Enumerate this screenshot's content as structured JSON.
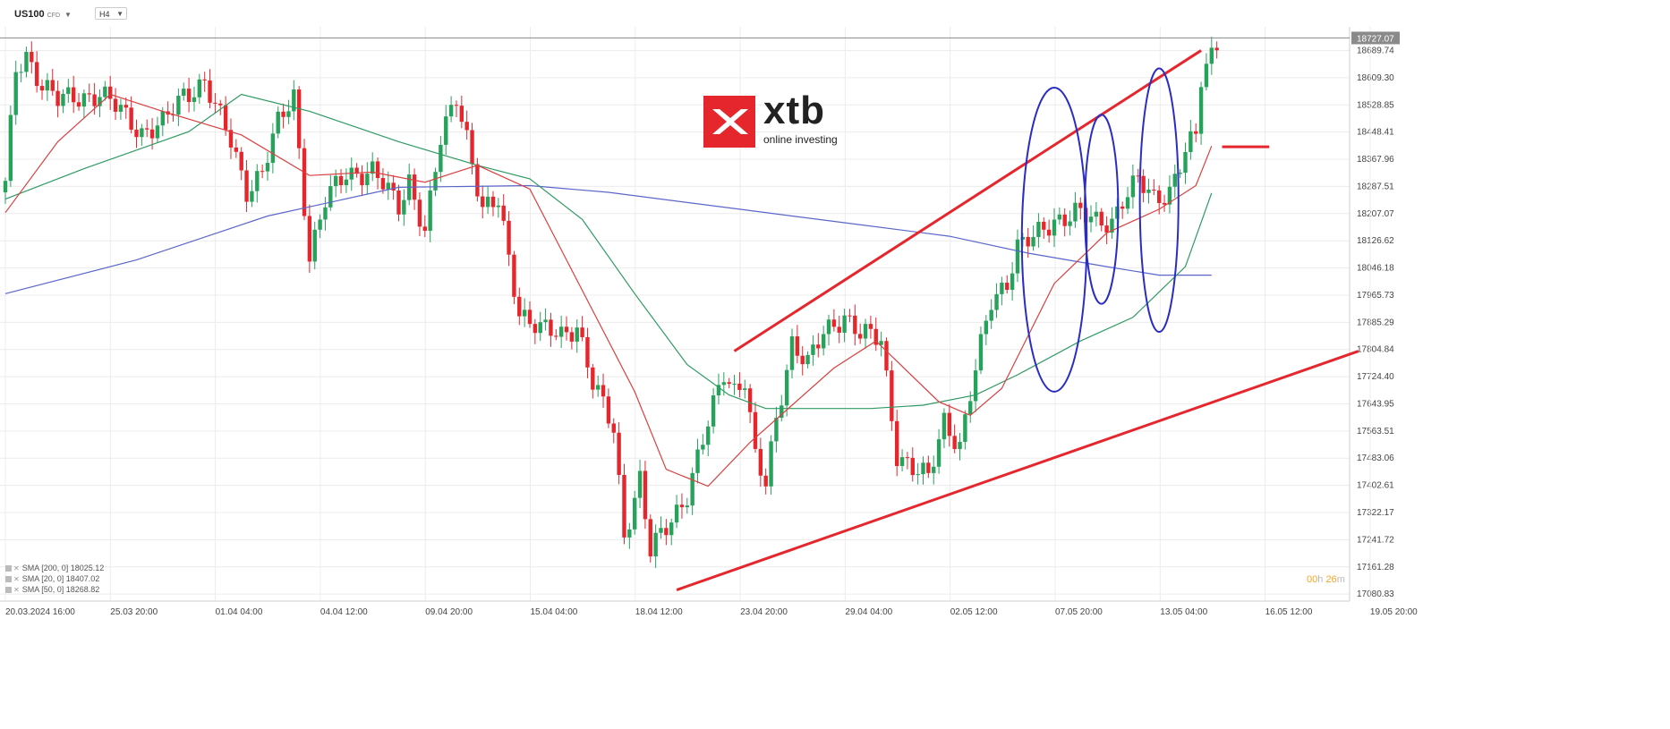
{
  "toolbar": {
    "symbol": "US100",
    "symbol_tag": "CFD",
    "timeframe": "H4"
  },
  "logo": {
    "name": "xtb",
    "tagline": "online investing"
  },
  "legend": [
    {
      "label": "SMA [200, 0]",
      "value": "18025.12"
    },
    {
      "label": "SMA [20, 0]",
      "value": "18407.02"
    },
    {
      "label": "SMA [50, 0]",
      "value": "18268.82"
    }
  ],
  "timer": {
    "hours": "00",
    "h": "h",
    "minutes": "26",
    "m": "m"
  },
  "colors": {
    "up": "#26a25b",
    "down": "#e5262d",
    "sma200": "#5a66c9",
    "sma20": "#d94040",
    "sma50": "#2e9a63",
    "trendline": "#e5262d",
    "circle": "#2a2dc4",
    "grid": "#ececec"
  },
  "chart_data": {
    "type": "candlestick",
    "timeframe": "H4",
    "ylim": [
      17060,
      18760
    ],
    "current_price": "18727.07",
    "y_ticks": [
      "18689.74",
      "18609.30",
      "18528.85",
      "18448.41",
      "18367.96",
      "18287.51",
      "18207.07",
      "18126.62",
      "18046.18",
      "17965.73",
      "17885.29",
      "17804.84",
      "17724.40",
      "17643.95",
      "17563.51",
      "17483.06",
      "17402.61",
      "17322.17",
      "17241.72",
      "17161.28",
      "17080.83"
    ],
    "x_labels": [
      "20.03.2024 16:00",
      "25.03 20:00",
      "01.04 04:00",
      "04.04 12:00",
      "09.04 20:00",
      "15.04 04:00",
      "18.04 12:00",
      "23.04 20:00",
      "29.04 04:00",
      "02.05 12:00",
      "07.05 20:00",
      "13.05 04:00",
      "16.05 12:00",
      "19.05 20:00"
    ],
    "anchors": [
      {
        "i": 0,
        "p": 18290
      },
      {
        "i": 2,
        "p": 18630
      },
      {
        "i": 4,
        "p": 18680
      },
      {
        "i": 7,
        "p": 18590
      },
      {
        "i": 10,
        "p": 18540
      },
      {
        "i": 14,
        "p": 18555
      },
      {
        "i": 18,
        "p": 18560
      },
      {
        "i": 22,
        "p": 18510
      },
      {
        "i": 26,
        "p": 18450
      },
      {
        "i": 30,
        "p": 18470
      },
      {
        "i": 34,
        "p": 18560
      },
      {
        "i": 38,
        "p": 18600
      },
      {
        "i": 40,
        "p": 18520
      },
      {
        "i": 43,
        "p": 18420
      },
      {
        "i": 46,
        "p": 18280
      },
      {
        "i": 49,
        "p": 18330
      },
      {
        "i": 52,
        "p": 18470
      },
      {
        "i": 55,
        "p": 18560
      },
      {
        "i": 58,
        "p": 18080
      },
      {
        "i": 61,
        "p": 18240
      },
      {
        "i": 65,
        "p": 18330
      },
      {
        "i": 70,
        "p": 18330
      },
      {
        "i": 75,
        "p": 18230
      },
      {
        "i": 77,
        "p": 18310
      },
      {
        "i": 80,
        "p": 18150
      },
      {
        "i": 83,
        "p": 18420
      },
      {
        "i": 86,
        "p": 18560
      },
      {
        "i": 88,
        "p": 18440
      },
      {
        "i": 91,
        "p": 18210
      },
      {
        "i": 94,
        "p": 18240
      },
      {
        "i": 98,
        "p": 17920
      },
      {
        "i": 102,
        "p": 17860
      },
      {
        "i": 106,
        "p": 17850
      },
      {
        "i": 109,
        "p": 17880
      },
      {
        "i": 112,
        "p": 17700
      },
      {
        "i": 116,
        "p": 17570
      },
      {
        "i": 118,
        "p": 17260
      },
      {
        "i": 121,
        "p": 17420
      },
      {
        "i": 123,
        "p": 17200
      },
      {
        "i": 126,
        "p": 17280
      },
      {
        "i": 130,
        "p": 17380
      },
      {
        "i": 134,
        "p": 17580
      },
      {
        "i": 137,
        "p": 17740
      },
      {
        "i": 139,
        "p": 17690
      },
      {
        "i": 141,
        "p": 17720
      },
      {
        "i": 143,
        "p": 17480
      },
      {
        "i": 145,
        "p": 17400
      },
      {
        "i": 147,
        "p": 17600
      },
      {
        "i": 150,
        "p": 17830
      },
      {
        "i": 153,
        "p": 17760
      },
      {
        "i": 156,
        "p": 17850
      },
      {
        "i": 160,
        "p": 17910
      },
      {
        "i": 163,
        "p": 17850
      },
      {
        "i": 167,
        "p": 17830
      },
      {
        "i": 170,
        "p": 17500
      },
      {
        "i": 173,
        "p": 17450
      },
      {
        "i": 176,
        "p": 17420
      },
      {
        "i": 179,
        "p": 17600
      },
      {
        "i": 182,
        "p": 17520
      },
      {
        "i": 185,
        "p": 17740
      },
      {
        "i": 188,
        "p": 17950
      },
      {
        "i": 191,
        "p": 18010
      },
      {
        "i": 193,
        "p": 18110
      },
      {
        "i": 196,
        "p": 18130
      },
      {
        "i": 200,
        "p": 18190
      },
      {
        "i": 204,
        "p": 18210
      },
      {
        "i": 208,
        "p": 18180
      },
      {
        "i": 211,
        "p": 18190
      },
      {
        "i": 213,
        "p": 18250
      },
      {
        "i": 216,
        "p": 18300
      },
      {
        "i": 219,
        "p": 18250
      },
      {
        "i": 222,
        "p": 18280
      },
      {
        "i": 225,
        "p": 18390
      },
      {
        "i": 227,
        "p": 18430
      },
      {
        "i": 228,
        "p": 18600
      },
      {
        "i": 231,
        "p": 18720
      }
    ],
    "sma200": [
      [
        0,
        17970
      ],
      [
        25,
        18070
      ],
      [
        50,
        18200
      ],
      [
        75,
        18285
      ],
      [
        100,
        18290
      ],
      [
        115,
        18270
      ],
      [
        140,
        18220
      ],
      [
        160,
        18180
      ],
      [
        180,
        18140
      ],
      [
        195,
        18090
      ],
      [
        210,
        18050
      ],
      [
        220,
        18025
      ],
      [
        230,
        18025
      ]
    ],
    "sma20": [
      [
        0,
        18210
      ],
      [
        10,
        18420
      ],
      [
        20,
        18560
      ],
      [
        30,
        18510
      ],
      [
        45,
        18440
      ],
      [
        58,
        18320
      ],
      [
        70,
        18330
      ],
      [
        80,
        18300
      ],
      [
        90,
        18350
      ],
      [
        100,
        18280
      ],
      [
        110,
        17980
      ],
      [
        120,
        17680
      ],
      [
        126,
        17450
      ],
      [
        134,
        17400
      ],
      [
        142,
        17530
      ],
      [
        150,
        17640
      ],
      [
        158,
        17750
      ],
      [
        166,
        17830
      ],
      [
        172,
        17740
      ],
      [
        178,
        17650
      ],
      [
        184,
        17610
      ],
      [
        190,
        17690
      ],
      [
        200,
        18000
      ],
      [
        210,
        18150
      ],
      [
        220,
        18220
      ],
      [
        227,
        18290
      ],
      [
        230,
        18407
      ]
    ],
    "sma50": [
      [
        0,
        18250
      ],
      [
        15,
        18340
      ],
      [
        35,
        18450
      ],
      [
        45,
        18560
      ],
      [
        58,
        18510
      ],
      [
        75,
        18420
      ],
      [
        90,
        18350
      ],
      [
        100,
        18310
      ],
      [
        110,
        18190
      ],
      [
        120,
        17970
      ],
      [
        130,
        17760
      ],
      [
        138,
        17670
      ],
      [
        145,
        17630
      ],
      [
        155,
        17630
      ],
      [
        165,
        17630
      ],
      [
        175,
        17640
      ],
      [
        185,
        17670
      ],
      [
        193,
        17730
      ],
      [
        205,
        17830
      ],
      [
        215,
        17900
      ],
      [
        225,
        18050
      ],
      [
        230,
        18268
      ]
    ],
    "trendlines": [
      [
        [
          128,
          17093
        ],
        [
          258,
          17800
        ]
      ],
      [
        [
          139,
          17800
        ],
        [
          228,
          18690
        ]
      ]
    ],
    "marker": [
      [
        232,
        18405
      ],
      [
        241,
        18405
      ]
    ],
    "circles": [
      [
        200,
        18130,
        11,
        45
      ],
      [
        209,
        18220,
        5,
        28
      ],
      [
        220,
        18247,
        6,
        39
      ]
    ]
  }
}
